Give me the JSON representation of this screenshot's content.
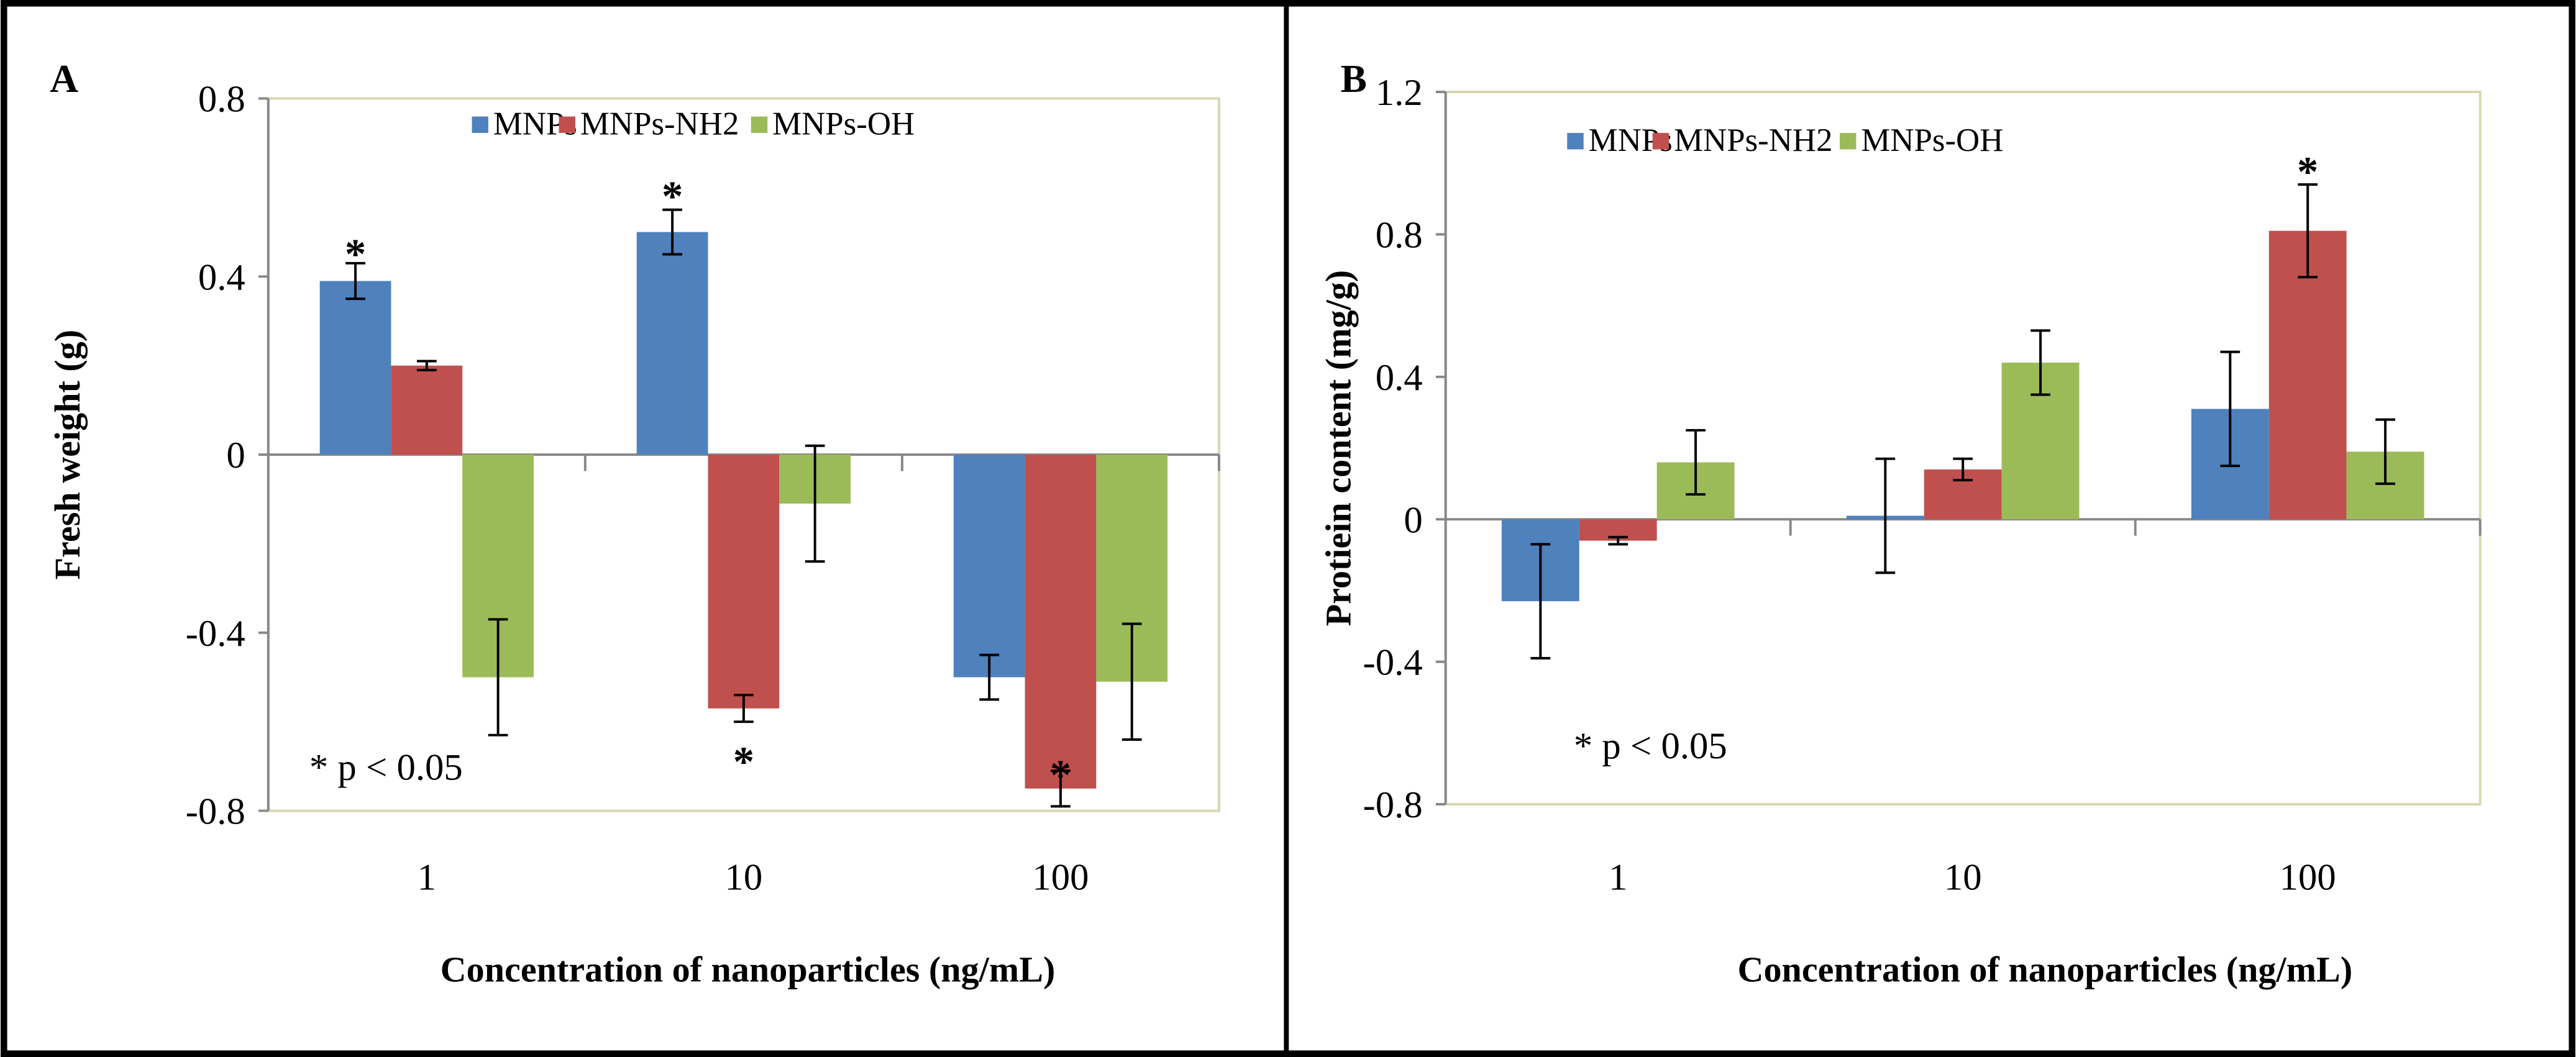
{
  "colors": {
    "MNPs": "#4F81BD",
    "MNPs-NH2": "#C0504D",
    "MNPs-OH": "#9BBB59",
    "plot_border": "#D8D8B0",
    "axis": "#888888"
  },
  "chart_data": [
    {
      "type": "bar",
      "panel_label": "A",
      "title": "",
      "xlabel": "Concentration of nanoparticles (ng/mL)",
      "ylabel": "Fresh weight (g)",
      "ylim": [
        -0.8,
        0.8
      ],
      "yticks": [
        "0.8",
        "0.4",
        "0",
        "-0.4",
        "-0.8"
      ],
      "ytick_values": [
        0.8,
        0.4,
        0,
        -0.4,
        -0.8
      ],
      "categories": [
        "1",
        "10",
        "100"
      ],
      "legend_position": "top-center",
      "series": [
        {
          "name": "MNPs",
          "values": [
            0.39,
            0.5,
            -0.5
          ],
          "errors": [
            0.04,
            0.05,
            0.05
          ]
        },
        {
          "name": "MNPs-NH2",
          "values": [
            0.2,
            -0.57,
            -0.75
          ],
          "errors": [
            0.01,
            0.03,
            0.04
          ]
        },
        {
          "name": "MNPs-OH",
          "values": [
            -0.5,
            -0.11,
            -0.51
          ],
          "errors": [
            0.13,
            0.13,
            0.13
          ]
        }
      ],
      "significance": [
        {
          "series": 0,
          "category": 0,
          "label": "*",
          "y": 0.47
        },
        {
          "series": 0,
          "category": 1,
          "label": "*",
          "y": 0.6
        },
        {
          "series": 1,
          "category": 1,
          "label": "*",
          "y": -0.67
        },
        {
          "series": 1,
          "category": 2,
          "label": "*",
          "y": -0.7
        }
      ],
      "annotation": "* p < 0.05"
    },
    {
      "type": "bar",
      "panel_label": "B",
      "title": "",
      "xlabel": "Concentration of nanoparticles (ng/mL)",
      "ylabel": "Protiein content (mg/g)",
      "ylim": [
        -0.8,
        1.2
      ],
      "yticks": [
        "1.2",
        "0.8",
        "0.4",
        "0",
        "-0.4",
        "-0.8"
      ],
      "ytick_values": [
        1.2,
        0.8,
        0.4,
        0,
        -0.4,
        -0.8
      ],
      "categories": [
        "1",
        "10",
        "100"
      ],
      "legend_position": "top-left",
      "series": [
        {
          "name": "MNPs",
          "values": [
            -0.23,
            0.01,
            0.31
          ],
          "errors": [
            0.16,
            0.16,
            0.16
          ]
        },
        {
          "name": "MNPs-NH2",
          "values": [
            -0.06,
            0.14,
            0.81
          ],
          "errors": [
            0.01,
            0.03,
            0.13
          ]
        },
        {
          "name": "MNPs-OH",
          "values": [
            0.16,
            0.44,
            0.19
          ],
          "errors": [
            0.09,
            0.09,
            0.09
          ]
        }
      ],
      "significance": [
        {
          "series": 1,
          "category": 2,
          "label": "*",
          "y": 1.0
        }
      ],
      "annotation": "* p < 0.05"
    }
  ]
}
